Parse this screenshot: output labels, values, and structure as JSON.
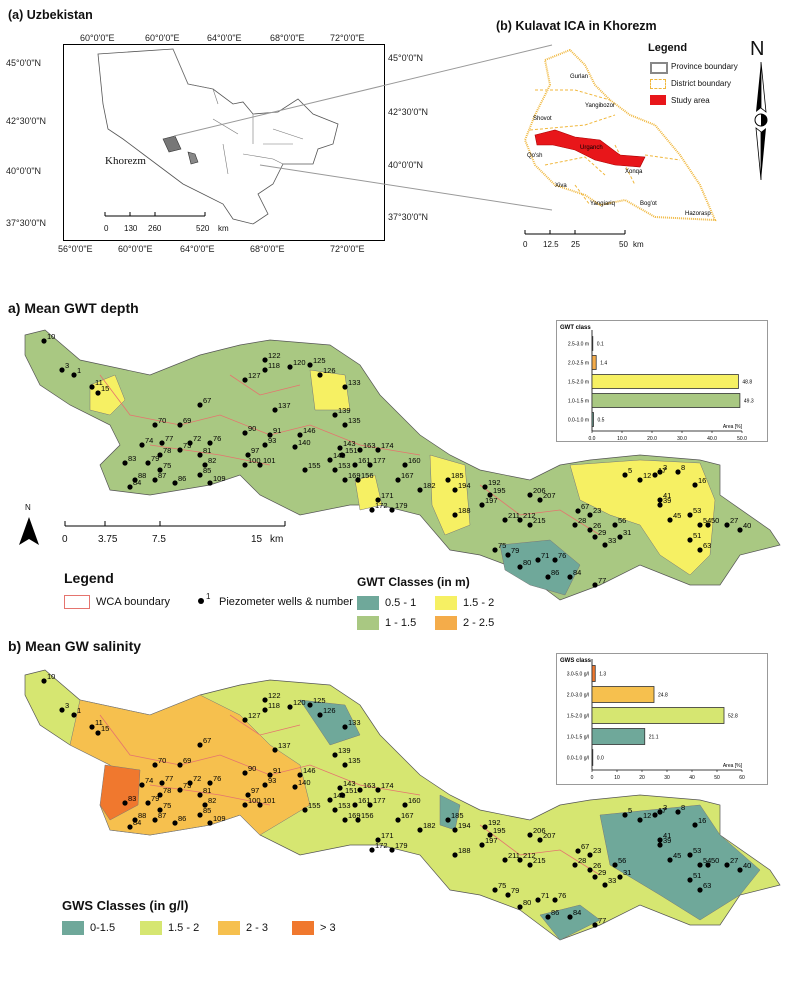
{
  "panel_a": {
    "title": "(a) Uzbekistan",
    "lon_ticks": [
      "56°0'0\"E",
      "60°0'0\"E",
      "64°0'0\"E",
      "68°0'0\"E",
      "72°0'0\"E"
    ],
    "lat_ticks": [
      "45°0'0\"N",
      "42°30'0\"N",
      "40°0'0\"N",
      "37°30'0\"N"
    ],
    "place_label": "Khorezm",
    "scale_labels": [
      "0",
      "130",
      "260",
      "520",
      "km"
    ]
  },
  "panel_b": {
    "title": "(b) Kulavat ICA in Khorezm",
    "legend_title": "Legend",
    "legend_items": [
      "Province boundary",
      "District boundary",
      "Study area"
    ],
    "districts": [
      "Gurlan",
      "Yangibozor",
      "Shovot",
      "Urganch",
      "Qo'sh",
      "Xonqa",
      "Xiva",
      "Yangiariq",
      "Bog'ot",
      "Hazorasp"
    ],
    "scale_labels": [
      "0",
      "12.5",
      "25",
      "50",
      "km"
    ],
    "north": "N",
    "colors": {
      "province": "#999999",
      "district": "#f0b73c",
      "study": "#e8161a"
    }
  },
  "panel_c": {
    "title": "a) Mean GWT depth",
    "north": "N",
    "scale_labels": [
      "0",
      "3.75",
      "7.5",
      "15",
      "km"
    ],
    "legend_title": "Legend",
    "wca_label": "WCA boundary",
    "well_num": "1",
    "well_label": "Piezometer wells & number",
    "classes_title": "GWT Classes (in m)",
    "classes": [
      {
        "label": "0.5 - 1",
        "color": "#6fa89a"
      },
      {
        "label": "1.5 - 2",
        "color": "#f6f063"
      },
      {
        "label": "1 - 1.5",
        "color": "#a9c882"
      },
      {
        "label": "2 - 2.5",
        "color": "#f4ac4a"
      }
    ]
  },
  "panel_d": {
    "title": "b) Mean GW salinity",
    "classes_title": "GWS Classes (in g/l)",
    "classes": [
      {
        "label": "0-1.5",
        "color": "#6fa89a"
      },
      {
        "label": "1.5 - 2",
        "color": "#d6e671"
      },
      {
        "label": "2 - 3",
        "color": "#f6c04e"
      },
      {
        "label": "> 3",
        "color": "#f0782e"
      }
    ]
  },
  "wells": [
    {
      "n": "10"
    },
    {
      "n": "3"
    },
    {
      "n": "1"
    },
    {
      "n": "11"
    },
    {
      "n": "15"
    },
    {
      "n": "67"
    },
    {
      "n": "70"
    },
    {
      "n": "69"
    },
    {
      "n": "74"
    },
    {
      "n": "77"
    },
    {
      "n": "72"
    },
    {
      "n": "76"
    },
    {
      "n": "83"
    },
    {
      "n": "79"
    },
    {
      "n": "78"
    },
    {
      "n": "73"
    },
    {
      "n": "81"
    },
    {
      "n": "82"
    },
    {
      "n": "75"
    },
    {
      "n": "85"
    },
    {
      "n": "88"
    },
    {
      "n": "87"
    },
    {
      "n": "86"
    },
    {
      "n": "84"
    },
    {
      "n": "109"
    },
    {
      "n": "122"
    },
    {
      "n": "118"
    },
    {
      "n": "120"
    },
    {
      "n": "125"
    },
    {
      "n": "127"
    },
    {
      "n": "126"
    },
    {
      "n": "133"
    },
    {
      "n": "137"
    },
    {
      "n": "139"
    },
    {
      "n": "135"
    },
    {
      "n": "90"
    },
    {
      "n": "91"
    },
    {
      "n": "93"
    },
    {
      "n": "97"
    },
    {
      "n": "100"
    },
    {
      "n": "101"
    },
    {
      "n": "146"
    },
    {
      "n": "140"
    },
    {
      "n": "143"
    },
    {
      "n": "149"
    },
    {
      "n": "151"
    },
    {
      "n": "155"
    },
    {
      "n": "153"
    },
    {
      "n": "163"
    },
    {
      "n": "174"
    },
    {
      "n": "161"
    },
    {
      "n": "177"
    },
    {
      "n": "169"
    },
    {
      "n": "160"
    },
    {
      "n": "156"
    },
    {
      "n": "167"
    },
    {
      "n": "171"
    },
    {
      "n": "172"
    },
    {
      "n": "179"
    },
    {
      "n": "182"
    },
    {
      "n": "185"
    },
    {
      "n": "194"
    },
    {
      "n": "195"
    },
    {
      "n": "192"
    },
    {
      "n": "197"
    },
    {
      "n": "188"
    },
    {
      "n": "206"
    },
    {
      "n": "207"
    },
    {
      "n": "211"
    },
    {
      "n": "212"
    },
    {
      "n": "215"
    },
    {
      "n": "67"
    },
    {
      "n": "28"
    },
    {
      "n": "26"
    },
    {
      "n": "29"
    },
    {
      "n": "33"
    },
    {
      "n": "31"
    },
    {
      "n": "23"
    },
    {
      "n": "75"
    },
    {
      "n": "79"
    },
    {
      "n": "80"
    },
    {
      "n": "71"
    },
    {
      "n": "76"
    },
    {
      "n": "86"
    },
    {
      "n": "84"
    },
    {
      "n": "77"
    },
    {
      "n": "5"
    },
    {
      "n": "12"
    },
    {
      "n": "17"
    },
    {
      "n": "3"
    },
    {
      "n": "8"
    },
    {
      "n": "16"
    },
    {
      "n": "41"
    },
    {
      "n": "39"
    },
    {
      "n": "45"
    },
    {
      "n": "53"
    },
    {
      "n": "54"
    },
    {
      "n": "50"
    },
    {
      "n": "56"
    },
    {
      "n": "27"
    },
    {
      "n": "40"
    },
    {
      "n": "51"
    },
    {
      "n": "63"
    },
    {
      "n": "65"
    }
  ],
  "chart_data": [
    {
      "type": "bar",
      "title": "GWT class",
      "categories": [
        "2.5-3.0 m",
        "2.0-2.5 m",
        "1.5-2.0 m",
        "1.0-1.5 m",
        "0.0-1.0 m"
      ],
      "values": [
        0.1,
        1.4,
        48.8,
        49.3,
        0.5
      ],
      "value_labels": [
        "0.1",
        "1.4",
        "48.8",
        "49.3",
        "0.5"
      ],
      "colors": [
        "#f4ac4a",
        "#f4ac4a",
        "#f6f063",
        "#a9c882",
        "#6fa89a"
      ],
      "xlabel": "Area [%]",
      "xlim": [
        0,
        50
      ],
      "xticks": [
        "0.0",
        "10.0",
        "20.0",
        "30.0",
        "40.0",
        "50.0"
      ]
    },
    {
      "type": "bar",
      "title": "GWS class",
      "categories": [
        "3.0-5.0 g/l",
        "2.0-3.0 g/l",
        "1.5-2.0 g/l",
        "1.0-1.5 g/l",
        "0.0-1.0 g/l"
      ],
      "values": [
        1.3,
        24.8,
        52.8,
        21.1,
        0.0
      ],
      "value_labels": [
        "1.3",
        "24.8",
        "52.8",
        "21.1",
        "0.0"
      ],
      "colors": [
        "#f0782e",
        "#f6c04e",
        "#d6e671",
        "#6fa89a",
        "#6fa89a"
      ],
      "xlabel": "Area [%]",
      "xlim": [
        0,
        60
      ],
      "xticks": [
        "0",
        "10",
        "20",
        "30",
        "40",
        "50",
        "60"
      ]
    }
  ]
}
